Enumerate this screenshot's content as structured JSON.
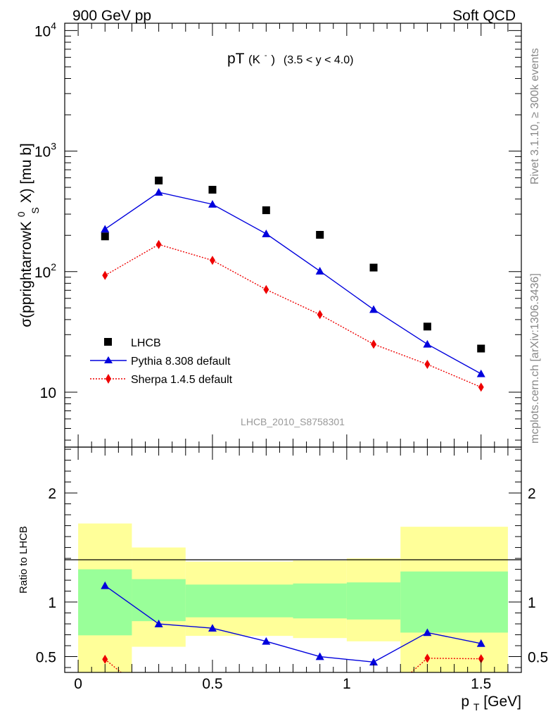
{
  "header": {
    "left": "900 GeV pp",
    "right": "Soft QCD"
  },
  "side_labels": {
    "rivet": "Rivet 3.1.10, ≥ 300k events",
    "mcplots": "mcplots.cern.ch [arXiv:1306.3436]"
  },
  "chart_data": [
    {
      "type": "scatter",
      "panel": "main",
      "title_main": "pT",
      "title_particle": "(K",
      "title_particle_sup": "-",
      "title_particle_close": ")",
      "title_range": "(3.5 < y < 4.0)",
      "ylabel": "σ(pprightarrowK",
      "ylabel_sup": "0",
      "ylabel_sub": "S",
      "ylabel_tail": " X) [mu b]",
      "yscale": "log",
      "ylim": [
        3.5,
        11500
      ],
      "xlim": [
        -0.05,
        1.65
      ],
      "ytick_labels": [
        {
          "base": "10",
          "exp": "4",
          "value": 10000
        },
        {
          "base": "10",
          "exp": "3",
          "value": 1000
        },
        {
          "base": "10",
          "exp": "2",
          "value": 100
        },
        {
          "base": "10",
          "exp": "",
          "value": 10
        }
      ],
      "watermark": "LHCB_2010_S8758301",
      "legend_position": "lower-left",
      "series": [
        {
          "name": "LHCB",
          "marker": "square",
          "color": "#000000",
          "x": [
            0.1,
            0.3,
            0.5,
            0.7,
            0.9,
            1.1,
            1.3,
            1.5
          ],
          "y": [
            196,
            570,
            478,
            323,
            202,
            108,
            35,
            23
          ]
        },
        {
          "name": "Pythia 8.308 default",
          "marker": "triangle",
          "color": "#0000dd",
          "line": "solid",
          "x": [
            0.1,
            0.3,
            0.5,
            0.7,
            0.9,
            1.1,
            1.3,
            1.5
          ],
          "y": [
            225,
            455,
            362,
            206,
            101,
            48.5,
            25,
            14.2
          ]
        },
        {
          "name": "Sherpa 1.4.5 default",
          "marker": "diamond",
          "color": "#ee0000",
          "line": "dotted",
          "x": [
            0.1,
            0.3,
            0.5,
            0.7,
            0.9,
            1.1,
            1.3,
            1.5
          ],
          "y": [
            93,
            168,
            124,
            71,
            44,
            25,
            17,
            11
          ]
        }
      ]
    },
    {
      "type": "line",
      "panel": "ratio",
      "ylabel": "Ratio to LHCB",
      "xlabel_main": "p",
      "xlabel_sub": "T",
      "xlabel_unit": " [GeV]",
      "ylim": [
        0.355,
        2.42
      ],
      "xlim": [
        -0.05,
        1.65
      ],
      "xtick_labels": [
        {
          "label": "0",
          "value": 0
        },
        {
          "label": "0.5",
          "value": 0.5
        },
        {
          "label": "1",
          "value": 1
        },
        {
          "label": "1.5",
          "value": 1.5
        }
      ],
      "ytick_labels": [
        {
          "label": "2",
          "value": 2
        },
        {
          "label": "1",
          "value": 1
        },
        {
          "label": "0.5",
          "value": 0.5
        }
      ],
      "reference_line": 1,
      "bands": [
        {
          "x0": 0.0,
          "x1": 0.2,
          "yellow": [
            0.3,
            1.72
          ],
          "green": [
            0.695,
            1.3
          ]
        },
        {
          "x0": 0.2,
          "x1": 0.4,
          "yellow": [
            0.59,
            1.5
          ],
          "green": [
            0.825,
            1.21
          ]
        },
        {
          "x0": 0.4,
          "x1": 0.8,
          "yellow": [
            0.69,
            1.37
          ],
          "green": [
            0.86,
            1.16
          ]
        },
        {
          "x0": 0.8,
          "x1": 1.0,
          "yellow": [
            0.67,
            1.38
          ],
          "green": [
            0.85,
            1.17
          ]
        },
        {
          "x0": 1.0,
          "x1": 1.2,
          "yellow": [
            0.64,
            1.4
          ],
          "green": [
            0.84,
            1.18
          ]
        },
        {
          "x0": 1.2,
          "x1": 1.6,
          "yellow": [
            0.3,
            1.69
          ],
          "green": [
            0.72,
            1.28
          ]
        }
      ],
      "series": [
        {
          "name": "Pythia 8.308 default",
          "color": "#0000dd",
          "marker": "triangle",
          "line": "solid",
          "x": [
            0.1,
            0.3,
            0.5,
            0.7,
            0.9,
            1.1,
            1.3,
            1.5
          ],
          "y": [
            1.15,
            0.8,
            0.76,
            0.64,
            0.5,
            0.45,
            0.72,
            0.62
          ]
        },
        {
          "name": "Sherpa 1.4.5 default",
          "color": "#ee0000",
          "marker": "diamond",
          "line": "dotted",
          "segments": [
            {
              "x": [
                0.1,
                0.16
              ],
              "y": [
                0.475,
                0.355
              ]
            },
            {
              "x": [
                1.24,
                1.3,
                1.5
              ],
              "y": [
                0.355,
                0.485,
                0.48
              ]
            }
          ],
          "x": [
            0.1,
            1.3,
            1.5
          ],
          "y": [
            0.475,
            0.485,
            0.48
          ]
        }
      ]
    }
  ]
}
